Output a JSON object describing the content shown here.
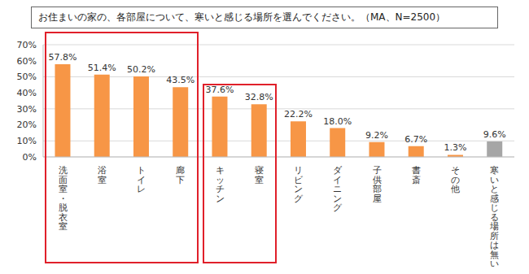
{
  "chart_data": {
    "type": "bar",
    "title": "お住まいの家の、各部屋について、寒いと感じる場所を選んでください。（MA、N=2500）",
    "categories": [
      "洗面室・脱衣室",
      "浴室",
      "トイレ",
      "廊下",
      "キッチン",
      "寝室",
      "リビング",
      "ダイニング",
      "子供部屋",
      "書斎",
      "その他",
      "寒いと感じる場所は無い"
    ],
    "values": [
      57.8,
      51.4,
      50.2,
      43.5,
      37.6,
      32.8,
      22.2,
      18.0,
      9.2,
      6.7,
      1.3,
      9.6
    ],
    "value_labels": [
      "57.8%",
      "51.4%",
      "50.2%",
      "43.5%",
      "37.6%",
      "32.8%",
      "22.2%",
      "18.0%",
      "9.2%",
      "6.7%",
      "1.3%",
      "9.6%"
    ],
    "colors": [
      "#F79646",
      "#F79646",
      "#F79646",
      "#F79646",
      "#F79646",
      "#F79646",
      "#F79646",
      "#F79646",
      "#F79646",
      "#F79646",
      "#F79646",
      "#A6A6A6"
    ],
    "ylim": [
      0,
      70
    ],
    "yticks": [
      {
        "value": 0,
        "label": "0%"
      },
      {
        "value": 10,
        "label": "10%"
      },
      {
        "value": 20,
        "label": "20%"
      },
      {
        "value": 30,
        "label": "30%"
      },
      {
        "value": 40,
        "label": "40%"
      },
      {
        "value": 50,
        "label": "50%"
      },
      {
        "value": 60,
        "label": "60%"
      },
      {
        "value": 70,
        "label": "70%"
      }
    ],
    "grid": true,
    "data_labels": true
  }
}
